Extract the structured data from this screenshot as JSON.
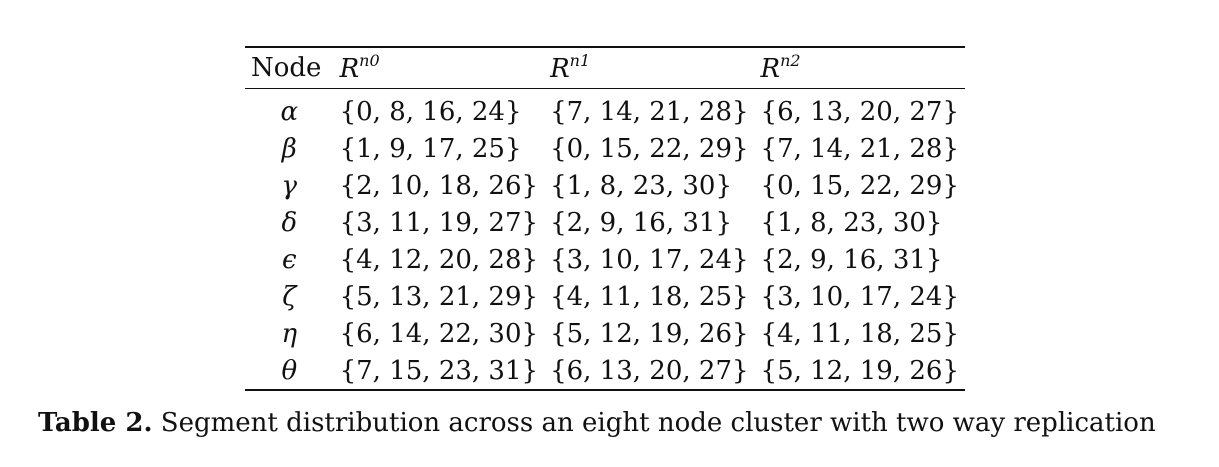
{
  "table": {
    "headers": {
      "node": "Node",
      "r0_base": "R",
      "r0_sup": "n0",
      "r1_base": "R",
      "r1_sup": "n1",
      "r2_base": "R",
      "r2_sup": "n2"
    },
    "rows": [
      {
        "node": "α",
        "r0": "{0, 8, 16, 24}",
        "r1": "{7, 14, 21, 28}",
        "r2": "{6, 13, 20, 27}"
      },
      {
        "node": "β",
        "r0": "{1, 9, 17, 25}",
        "r1": "{0, 15, 22, 29}",
        "r2": "{7, 14, 21, 28}"
      },
      {
        "node": "γ",
        "r0": "{2, 10, 18, 26}",
        "r1": "{1, 8, 23, 30}",
        "r2": "{0, 15, 22, 29}"
      },
      {
        "node": "δ",
        "r0": "{3, 11, 19, 27}",
        "r1": "{2, 9, 16, 31}",
        "r2": "{1, 8, 23, 30}"
      },
      {
        "node": "ϵ",
        "r0": "{4, 12, 20, 28}",
        "r1": "{3, 10, 17, 24}",
        "r2": "{2, 9, 16, 31}"
      },
      {
        "node": "ζ",
        "r0": "{5, 13, 21, 29}",
        "r1": "{4, 11, 18, 25}",
        "r2": "{3, 10, 17, 24}"
      },
      {
        "node": "η",
        "r0": "{6, 14, 22, 30}",
        "r1": "{5, 12, 19, 26}",
        "r2": "{4, 11, 18, 25}"
      },
      {
        "node": "θ",
        "r0": "{7, 15, 23, 31}",
        "r1": "{6, 13, 20, 27}",
        "r2": "{5, 12, 19, 26}"
      }
    ]
  },
  "caption": {
    "label": "Table 2.",
    "text": "Segment distribution across an eight node cluster with two way replication"
  }
}
